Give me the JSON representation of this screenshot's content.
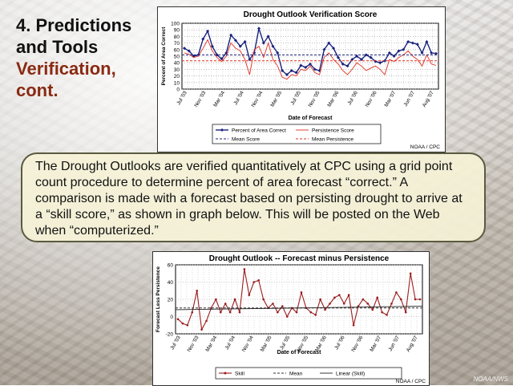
{
  "slide": {
    "title_lines": [
      "4. Predictions",
      "and Tools",
      "Verification,",
      "cont."
    ],
    "body_text": "The Drought Outlooks are verified quantitatively at CPC using a grid point count procedure to determine percent of area forecast “correct.” A comparison is made with a forecast based on persisting drought to arrive at a “skill score,” as shown in graph below. This will be posted on the Web when “computerized.”",
    "footer": "NOAA/NWS",
    "title_color": "#111111",
    "accent_color": "#8a2a12"
  },
  "chart_data": [
    {
      "type": "line",
      "title": "Drought Outlook Verification Score",
      "xlabel": "Date of Forecast",
      "ylabel": "Percent of Area Correct",
      "credit": "NOAA / CPC",
      "ylim": [
        0,
        100
      ],
      "yticks": [
        0,
        10,
        20,
        30,
        40,
        50,
        60,
        70,
        80,
        90,
        100
      ],
      "x_tick_labels": [
        "Jul '03",
        "Nov '03",
        "Mar '04",
        "Jul '04",
        "Nov '04",
        "Mar '05",
        "Jul '05",
        "Nov '05",
        "Mar '06",
        "Jul '06",
        "Nov '06",
        "Mar '07",
        "Jun '07",
        "Aug '07"
      ],
      "legend": [
        "Percent of Area Correct",
        "Persistence Score",
        "Mean Score",
        "Mean Persistence"
      ],
      "series": [
        {
          "name": "Percent of Area Correct",
          "color": "#1a237e",
          "values": [
            62,
            58,
            50,
            52,
            76,
            88,
            65,
            52,
            46,
            55,
            82,
            74,
            65,
            72,
            45,
            55,
            92,
            70,
            80,
            65,
            55,
            28,
            22,
            28,
            25,
            36,
            33,
            38,
            30,
            28,
            60,
            70,
            62,
            48,
            38,
            35,
            45,
            50,
            45,
            52,
            48,
            42,
            40,
            43,
            55,
            50,
            58,
            60,
            72,
            70,
            68,
            55,
            72,
            55,
            54
          ]
        },
        {
          "name": "Persistence Score",
          "color": "#e03020",
          "values": [
            55,
            53,
            48,
            50,
            62,
            75,
            58,
            48,
            42,
            50,
            70,
            62,
            58,
            45,
            22,
            60,
            65,
            48,
            70,
            45,
            35,
            18,
            15,
            22,
            20,
            30,
            28,
            35,
            25,
            22,
            48,
            55,
            45,
            38,
            28,
            22,
            30,
            40,
            35,
            28,
            32,
            35,
            30,
            22,
            45,
            42,
            48,
            52,
            58,
            50,
            45,
            35,
            52,
            38,
            36
          ]
        },
        {
          "name": "Mean Score",
          "color": "#1a237e",
          "values": [
            52
          ]
        },
        {
          "name": "Mean Persistence",
          "color": "#e03020",
          "values": [
            43
          ]
        }
      ]
    },
    {
      "type": "line",
      "title": "Drought Outlook -- Forecast minus Persistence",
      "xlabel": "Date of Forecast",
      "ylabel": "Forecast Less Persistence",
      "credit": "NOAA / CPC",
      "ylim": [
        -20,
        60
      ],
      "yticks": [
        -20,
        0,
        20,
        40,
        60
      ],
      "x_tick_labels": [
        "Jul '03",
        "Nov '03",
        "Mar '04",
        "Jul '04",
        "Nov '04",
        "Mar '05",
        "Jul '05",
        "Nov '05",
        "Mar '06",
        "Jul '06",
        "Nov '06",
        "Mar '07",
        "Jun '07",
        "Aug '07"
      ],
      "legend": [
        "Skill",
        "Mean",
        "Linear (Skill)"
      ],
      "series": [
        {
          "name": "Skill",
          "color": "#9b1c1c",
          "values": [
            -3,
            -8,
            -10,
            5,
            30,
            -15,
            -5,
            10,
            20,
            5,
            15,
            5,
            20,
            5,
            55,
            25,
            40,
            42,
            20,
            10,
            15,
            5,
            12,
            0,
            10,
            5,
            28,
            10,
            5,
            2,
            20,
            8,
            15,
            22,
            25,
            15,
            25,
            -10,
            12,
            20,
            15,
            8,
            22,
            5,
            2,
            15,
            28,
            20,
            5,
            50,
            20,
            20
          ]
        },
        {
          "name": "Mean",
          "color": "#333333",
          "values": [
            10
          ]
        },
        {
          "name": "Linear (Skill)",
          "color": "#222222",
          "values": [
            8,
            12
          ]
        }
      ]
    }
  ]
}
